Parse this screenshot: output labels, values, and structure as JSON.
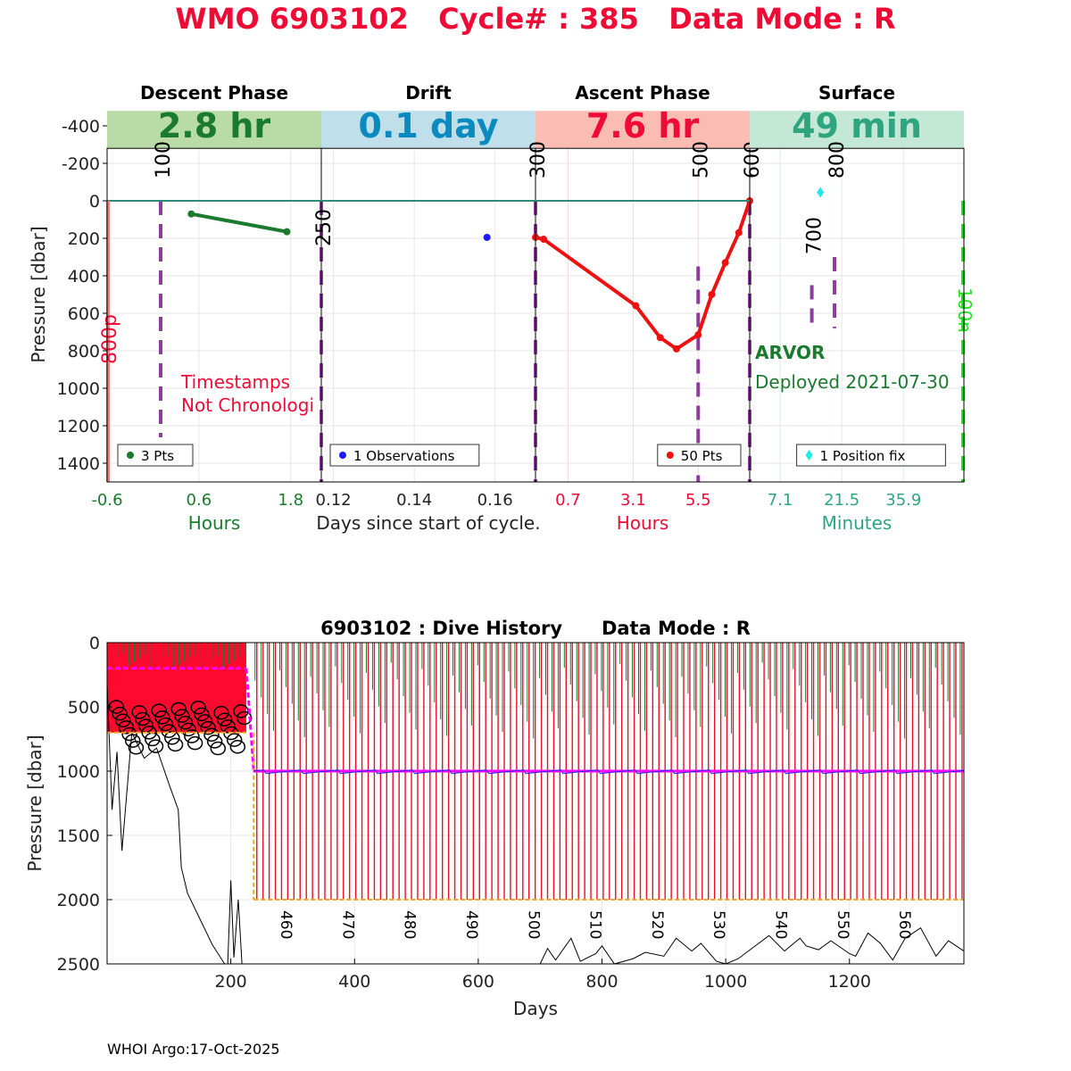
{
  "header": {
    "title": "WMO 6903102   Cycle# : 385   Data Mode : R",
    "footer": "WHOI Argo:17-Oct-2025"
  },
  "colors": {
    "title": "#ee0b35",
    "descent": "#1a7a2e",
    "drift": "#0a8bbf",
    "ascent": "#ee0b35",
    "surface": "#2ea57f",
    "purple": "#8e3c9e",
    "lime": "#22e022"
  },
  "chart_data": [
    {
      "type": "line",
      "name": "cycle-profile",
      "ylabel": "Pressure [dbar]",
      "ylim": [
        -500,
        1500
      ],
      "yticks": [
        -400,
        -200,
        0,
        200,
        400,
        600,
        800,
        1000,
        1200,
        1400
      ],
      "center_xlabel": "Days since start of cycle.",
      "panels": [
        {
          "key": "descent",
          "title": "Descent Phase",
          "duration": "2.8 hr",
          "xlabel": "Hours",
          "xlim": [
            -0.6,
            2.2
          ],
          "xticks": [
            "-0.6",
            "0.6",
            "1.8"
          ],
          "xtick_values": [
            -0.6,
            0.6,
            1.8
          ],
          "legend": "3 Pts",
          "series": [
            {
              "name": "descent",
              "x": [
                0.5,
                1.75
              ],
              "y": [
                70,
                165
              ],
              "color": "#1a7a2e"
            }
          ],
          "annotations": [
            "Timestamps",
            "Not Chronologi"
          ],
          "left_label": "800p",
          "dashed_labels": [
            {
              "text": "100",
              "x": 0.1
            },
            {
              "text": "250",
              "x": 2.2
            }
          ]
        },
        {
          "key": "drift",
          "title": "Drift",
          "duration": "0.1 day",
          "xlabel": "",
          "xlim": [
            0.117,
            0.17
          ],
          "xticks": [
            "0.12",
            "0.14",
            "0.16"
          ],
          "xtick_values": [
            0.12,
            0.14,
            0.16
          ],
          "legend": "1 Observations",
          "series": [
            {
              "name": "drift",
              "x": [
                0.158
              ],
              "y": [
                195
              ],
              "color": "#1a1aff"
            }
          ]
        },
        {
          "key": "ascent",
          "title": "Ascent Phase",
          "duration": "7.6 hr",
          "xlabel": "Hours",
          "xlim": [
            -0.5,
            7.4
          ],
          "xticks": [
            "0.7",
            "3.1",
            "5.5"
          ],
          "xtick_values": [
            0.7,
            3.1,
            5.5
          ],
          "legend": "50 Pts",
          "series": [
            {
              "name": "ascent",
              "x": [
                -0.5,
                -0.2,
                3.2,
                4.1,
                4.7,
                5.5,
                6.0,
                6.5,
                7.0,
                7.4
              ],
              "y": [
                195,
                205,
                560,
                730,
                790,
                715,
                500,
                330,
                170,
                0
              ],
              "color": "#ee1111"
            }
          ],
          "dashed_labels": [
            {
              "text": "300",
              "x": -0.5
            },
            {
              "text": "500",
              "x": 5.5
            },
            {
              "text": "600",
              "x": 7.4
            }
          ]
        },
        {
          "key": "surface",
          "title": "Surface",
          "duration": "49 min",
          "xlabel": "Minutes",
          "xlim": [
            0,
            50
          ],
          "xticks": [
            "7.1",
            "21.5",
            "35.9"
          ],
          "xtick_values": [
            7.1,
            21.5,
            35.9
          ],
          "legend": "1 Position fix",
          "series": [
            {
              "name": "position-fix",
              "x": [
                16.5
              ],
              "y": [
                -45
              ],
              "color": "#1fe8ef"
            }
          ],
          "info_name": "ARVOR",
          "info_deployed": "Deployed 2021-07-30",
          "right_label": "100n",
          "dashed_labels": [
            {
              "text": "700",
              "x": 14.5
            },
            {
              "text": "800",
              "x": 19.8
            }
          ]
        }
      ]
    },
    {
      "type": "line",
      "name": "dive-history",
      "title": "6903102 : Dive History      Data Mode : R",
      "xlabel": "Days",
      "ylabel": "Pressure [dbar]",
      "xlim": [
        0,
        1385
      ],
      "ylim": [
        0,
        2500
      ],
      "xticks": [
        200,
        400,
        600,
        800,
        1000,
        1200
      ],
      "yticks": [
        0,
        500,
        1000,
        1500,
        2000,
        2500
      ],
      "early_period": {
        "end_day": 225,
        "park": 200,
        "profile": 700
      },
      "switch_day": 237,
      "cycle_spacing_days": 10,
      "park_pressure": 1000,
      "profile_pressure": 2000,
      "cycle_labels": [
        "460",
        "470",
        "480",
        "490",
        "500",
        "510",
        "520",
        "530",
        "540",
        "550",
        "560"
      ],
      "cycle_label_days": [
        290,
        390,
        490,
        590,
        690,
        790,
        890,
        990,
        1090,
        1190,
        1290
      ],
      "bottom_trace": {
        "x": [
          700,
          712,
          725,
          750,
          765,
          790,
          800,
          820,
          850,
          870,
          900,
          920,
          945,
          960,
          985,
          1000,
          1020,
          1045,
          1070,
          1095,
          1120,
          1130,
          1150,
          1170,
          1200,
          1210,
          1230,
          1250,
          1270,
          1290,
          1315,
          1340,
          1360,
          1385
        ],
        "y": [
          2500,
          2380,
          2470,
          2300,
          2480,
          2420,
          2360,
          2500,
          2460,
          2410,
          2440,
          2300,
          2400,
          2340,
          2480,
          2500,
          2460,
          2370,
          2280,
          2400,
          2300,
          2360,
          2390,
          2320,
          2420,
          2440,
          2260,
          2340,
          2470,
          2300,
          2220,
          2440,
          2320,
          2400
        ]
      }
    }
  ]
}
